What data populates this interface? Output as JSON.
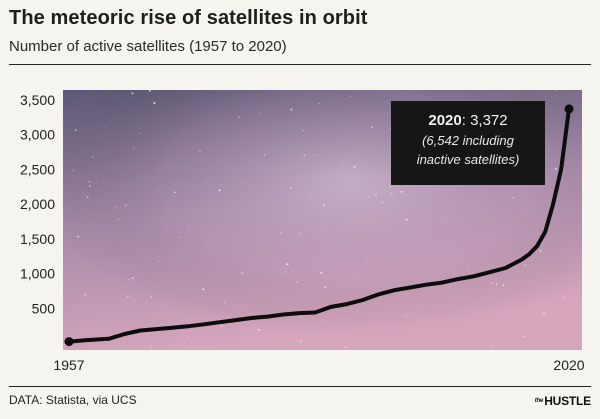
{
  "header": {
    "title": "The meteoric rise of satellites in orbit",
    "subtitle": "Number of active satellites (1957 to 2020)"
  },
  "footer": {
    "source": "DATA: Statista, via UCS",
    "brand_prefix": "the",
    "brand_name": "HUSTLE"
  },
  "callout": {
    "year": "2020",
    "value_text": ": 3,372",
    "line2": "(6,542 including",
    "line3": "inactive satellites)"
  },
  "colors": {
    "line": "#0d0d0d",
    "sky_top": "#5c5875",
    "sky_mid": "#a58aa8",
    "sky_bottom": "#d6a6bd",
    "callout_bg": "#161616"
  },
  "chart_data": {
    "type": "line",
    "title": "The meteoric rise of satellites in orbit",
    "subtitle": "Number of active satellites (1957 to 2020)",
    "xlabel": "",
    "ylabel": "",
    "xlim": [
      1957,
      2020
    ],
    "ylim": [
      0,
      3500
    ],
    "y_ticks": [
      500,
      1000,
      1500,
      2000,
      2500,
      3000,
      3500
    ],
    "y_tick_labels": [
      "500",
      "1,000",
      "1,500",
      "2,000",
      "2,500",
      "3,000",
      "3,500"
    ],
    "x_tick_labels": [
      "1957",
      "2020"
    ],
    "grid": false,
    "background": "night sky image",
    "series": [
      {
        "x": [
          1957,
          1959,
          1962,
          1964,
          1966,
          1968,
          1970,
          1972,
          1974,
          1976,
          1978,
          1980,
          1982,
          1984,
          1986,
          1988,
          1990,
          1992,
          1994,
          1996,
          1998,
          2000,
          2002,
          2004,
          2006,
          2008,
          2010,
          2012,
          2014,
          2015,
          2016,
          2017,
          2018,
          2019,
          2020
        ],
        "y": [
          20,
          40,
          60,
          130,
          180,
          200,
          220,
          240,
          270,
          300,
          330,
          360,
          380,
          410,
          430,
          440,
          520,
          560,
          620,
          700,
          760,
          800,
          840,
          870,
          920,
          960,
          1020,
          1080,
          1200,
          1280,
          1400,
          1600,
          2000,
          2500,
          3372
        ]
      }
    ],
    "markers": [
      {
        "x": 1957,
        "y": 20
      },
      {
        "x": 2020,
        "y": 3372
      }
    ]
  }
}
